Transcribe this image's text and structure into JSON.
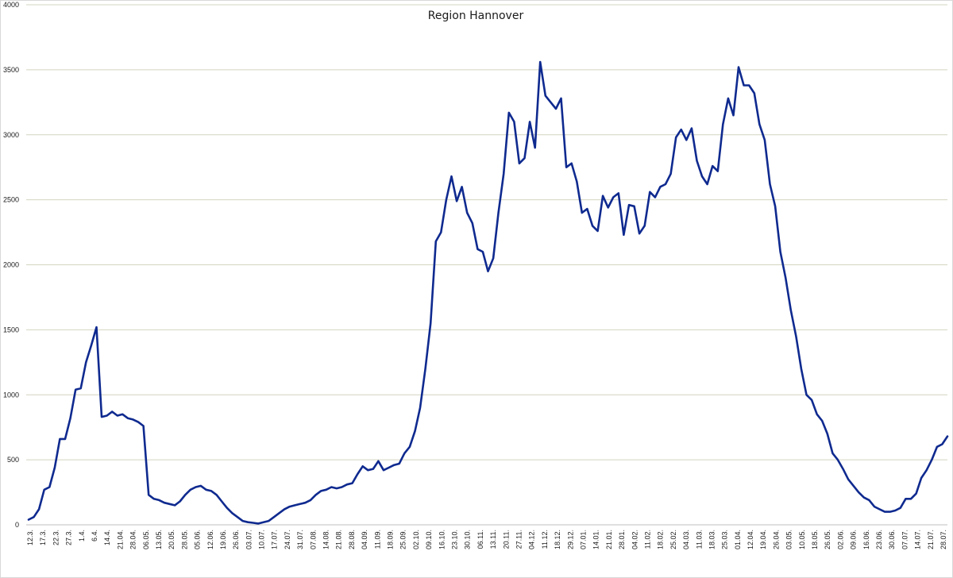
{
  "chart_data": {
    "type": "line",
    "title": "Region Hannover",
    "xlabel": "",
    "ylabel": "",
    "ylim": [
      0,
      4000
    ],
    "yticks": [
      "0",
      "500",
      "1000",
      "1500",
      "2000",
      "2500",
      "3000",
      "3500",
      "4000"
    ],
    "grid": true,
    "legend": "none",
    "line_color": "#0f2a8f",
    "grid_color": "#d4d4c0",
    "tick_labels": [
      "12.3.",
      "17.3.",
      "22.3.",
      "27.3.",
      "1.4.",
      "6.4.",
      "14.4.",
      "21.04.",
      "28.04.",
      "06.05.",
      "13.05.",
      "20.05.",
      "28.05.",
      "05.06.",
      "12.06.",
      "19.06.",
      "26.06.",
      "03.07.",
      "10.07.",
      "17.07.",
      "24.07.",
      "31.07.",
      "07.08.",
      "14.08.",
      "21.08.",
      "28.08.",
      "04.09.",
      "11.09.",
      "18.09.",
      "25.09.",
      "02.10.",
      "09.10.",
      "16.10.",
      "23.10.",
      "30.10.",
      "06.11.",
      "13.11.",
      "20.11.",
      "27.11.",
      "04.12.",
      "11.12.",
      "18.12.",
      "29.12.",
      "07.01.",
      "14.01.",
      "21.01.",
      "28.01.",
      "04.02.",
      "11.02.",
      "18.02.",
      "25.02.",
      "04.03.",
      "11.03.",
      "18.03.",
      "25.03.",
      "01.04.",
      "12.04.",
      "19.04.",
      "26.04.",
      "03.05.",
      "10.05.",
      "18.05.",
      "26.05.",
      "02.06.",
      "09.06.",
      "16.06.",
      "23.06.",
      "30.06.",
      "07.07.",
      "14.07.",
      "21.07.",
      "28.07."
    ],
    "values": [
      40,
      60,
      120,
      270,
      290,
      440,
      660,
      660,
      820,
      1040,
      1050,
      1250,
      1380,
      1520,
      830,
      840,
      870,
      840,
      850,
      820,
      810,
      790,
      760,
      230,
      200,
      190,
      170,
      160,
      150,
      180,
      230,
      270,
      290,
      300,
      270,
      260,
      230,
      180,
      130,
      90,
      60,
      30,
      20,
      15,
      10,
      20,
      30,
      60,
      90,
      120,
      140,
      150,
      160,
      170,
      190,
      230,
      260,
      270,
      290,
      280,
      290,
      310,
      320,
      390,
      450,
      420,
      430,
      490,
      420,
      440,
      460,
      470,
      550,
      600,
      720,
      900,
      1200,
      1550,
      2180,
      2250,
      2500,
      2680,
      2490,
      2600,
      2400,
      2320,
      2120,
      2100,
      1950,
      2050,
      2400,
      2700,
      3170,
      3100,
      2780,
      2820,
      3100,
      2900,
      3560,
      3300,
      3250,
      3200,
      3280,
      2750,
      2780,
      2640,
      2400,
      2430,
      2300,
      2260,
      2530,
      2440,
      2520,
      2550,
      2230,
      2460,
      2450,
      2240,
      2300,
      2560,
      2520,
      2600,
      2620,
      2700,
      2980,
      3040,
      2960,
      3050,
      2800,
      2680,
      2620,
      2760,
      2720,
      3080,
      3280,
      3150,
      3520,
      3380,
      3380,
      3320,
      3080,
      2960,
      2620,
      2450,
      2100,
      1900,
      1650,
      1450,
      1200,
      1000,
      960,
      850,
      800,
      700,
      550,
      500,
      430,
      350,
      300,
      250,
      210,
      190,
      140,
      120,
      100,
      100,
      110,
      130,
      200,
      200,
      240,
      360,
      420,
      500,
      600,
      620,
      680
    ]
  }
}
